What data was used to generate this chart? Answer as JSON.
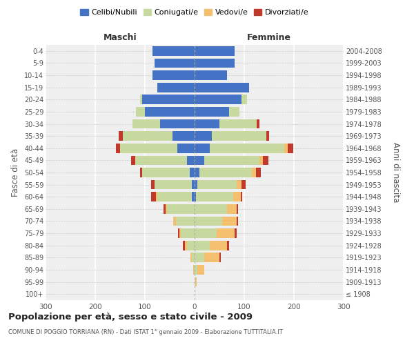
{
  "age_groups": [
    "100+",
    "95-99",
    "90-94",
    "85-89",
    "80-84",
    "75-79",
    "70-74",
    "65-69",
    "60-64",
    "55-59",
    "50-54",
    "45-49",
    "40-44",
    "35-39",
    "30-34",
    "25-29",
    "20-24",
    "15-19",
    "10-14",
    "5-9",
    "0-4"
  ],
  "birth_years": [
    "≤ 1908",
    "1909-1913",
    "1914-1918",
    "1919-1923",
    "1924-1928",
    "1929-1933",
    "1934-1938",
    "1939-1943",
    "1944-1948",
    "1949-1953",
    "1954-1958",
    "1959-1963",
    "1964-1968",
    "1969-1973",
    "1974-1978",
    "1979-1983",
    "1984-1988",
    "1989-1993",
    "1994-1998",
    "1999-2003",
    "2004-2008"
  ],
  "males": {
    "celibi": [
      0,
      0,
      0,
      0,
      0,
      0,
      0,
      0,
      5,
      5,
      10,
      15,
      35,
      45,
      70,
      100,
      105,
      75,
      85,
      80,
      85
    ],
    "coniugati": [
      0,
      0,
      2,
      5,
      15,
      28,
      38,
      55,
      70,
      75,
      95,
      105,
      115,
      100,
      55,
      18,
      5,
      0,
      0,
      0,
      0
    ],
    "vedovi": [
      0,
      0,
      1,
      3,
      5,
      3,
      5,
      3,
      3,
      0,
      0,
      0,
      0,
      0,
      0,
      0,
      0,
      0,
      0,
      0,
      0
    ],
    "divorziati": [
      0,
      0,
      0,
      0,
      3,
      3,
      0,
      5,
      10,
      8,
      5,
      8,
      8,
      8,
      0,
      0,
      0,
      0,
      0,
      0,
      0
    ]
  },
  "females": {
    "nubili": [
      0,
      0,
      0,
      0,
      0,
      0,
      0,
      0,
      3,
      5,
      10,
      20,
      30,
      35,
      50,
      70,
      95,
      110,
      65,
      80,
      80
    ],
    "coniugate": [
      0,
      2,
      5,
      20,
      30,
      45,
      55,
      65,
      75,
      80,
      105,
      110,
      150,
      110,
      75,
      20,
      10,
      0,
      0,
      0,
      0
    ],
    "vedove": [
      0,
      2,
      15,
      30,
      35,
      35,
      30,
      20,
      15,
      10,
      8,
      8,
      8,
      0,
      0,
      0,
      0,
      0,
      0,
      0,
      0
    ],
    "divorziate": [
      0,
      0,
      0,
      3,
      5,
      5,
      3,
      3,
      3,
      8,
      10,
      10,
      10,
      5,
      5,
      0,
      0,
      0,
      0,
      0,
      0
    ]
  },
  "colors": {
    "celibi": "#4472C4",
    "coniugati": "#c8d9a0",
    "vedovi": "#f4c06f",
    "divorziati": "#c0392b"
  },
  "title": "Popolazione per età, sesso e stato civile - 2009",
  "subtitle": "COMUNE DI POGGIO TORRIANA (RN) - Dati ISTAT 1° gennaio 2009 - Elaborazione TUTTITALIA.IT",
  "xlabel_left": "Maschi",
  "xlabel_right": "Femmine",
  "ylabel_left": "Fasce di età",
  "ylabel_right": "Anni di nascita",
  "xlim": 300,
  "legend_labels": [
    "Celibi/Nubili",
    "Coniugati/e",
    "Vedovi/e",
    "Divorziati/e"
  ],
  "bg_color": "#ffffff",
  "plot_bg": "#efefef"
}
